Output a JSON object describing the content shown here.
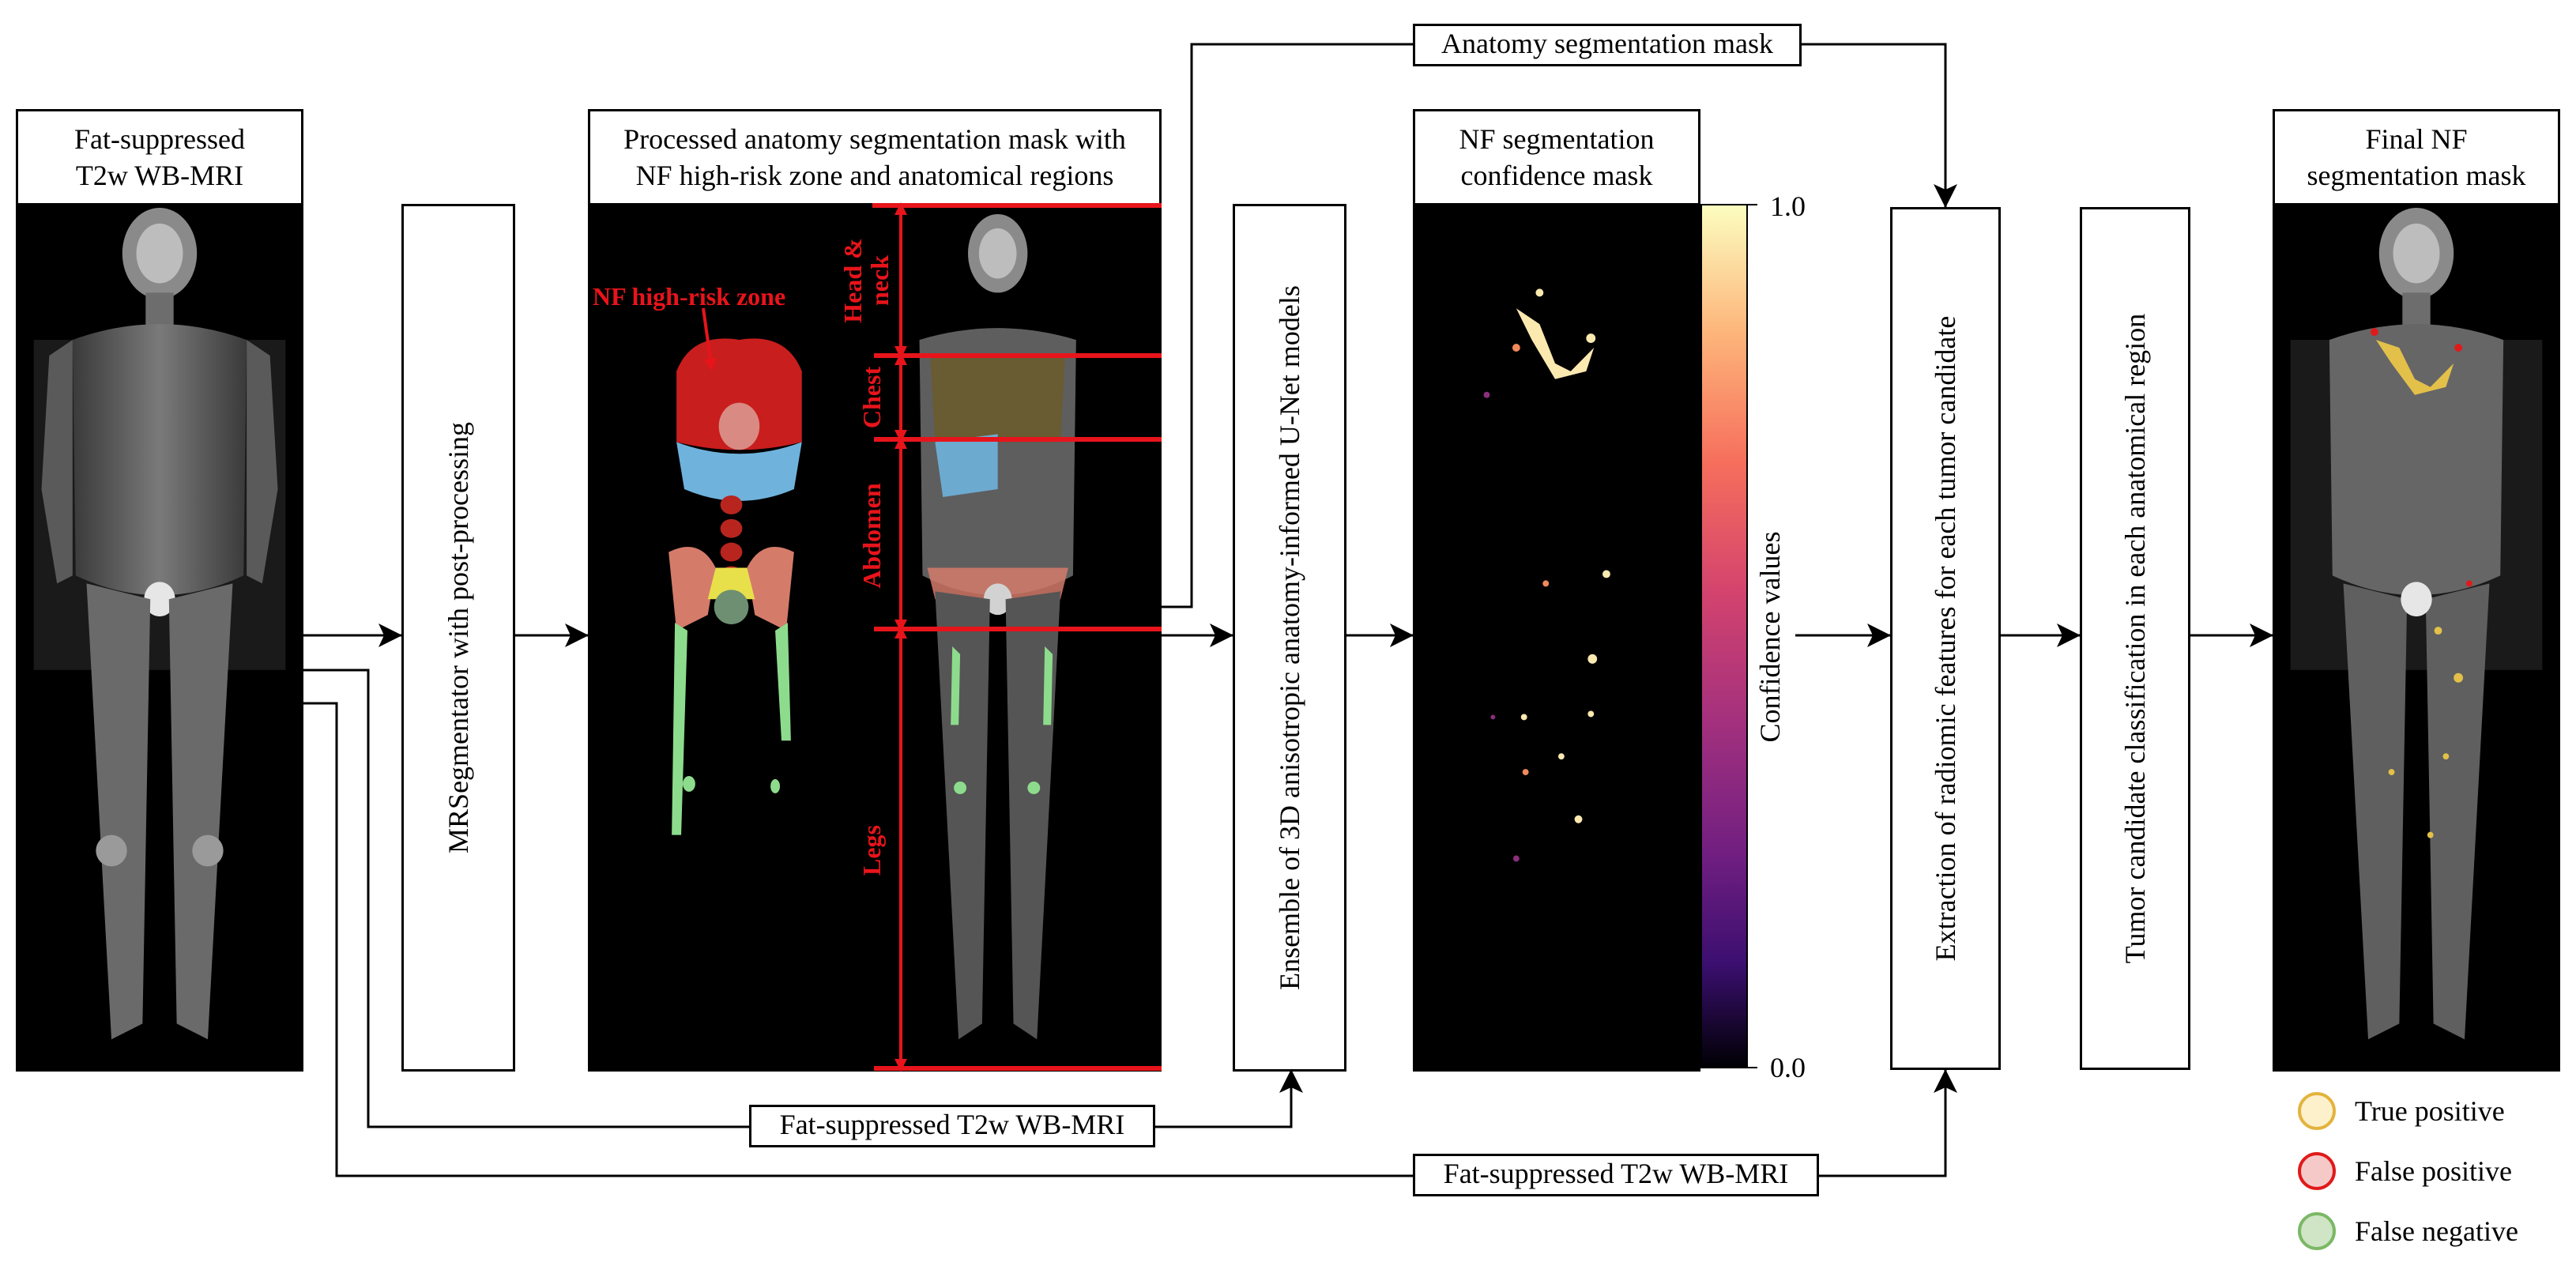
{
  "panels": {
    "input_title": "Fat-suppressed\nT2w WB-MRI",
    "processed_title": "Processed anatomy segmentation mask with\nNF high-risk zone and anatomical regions",
    "confidence_title": "NF segmentation\nconfidence mask",
    "final_title": "Final NF\nsegmentation mask"
  },
  "steps": {
    "mrsegmentator": "MRSegmentator with post-processing",
    "ensemble": "Ensemble of 3D anisotropic anatomy-informed U-Net models",
    "radiomic": "Extraction of radiomic features for each tumor candidate",
    "classification": "Tumor candidate classification in each anatomical region"
  },
  "connectors": {
    "anatomy_mask": "Anatomy segmentation mask",
    "mri_input_1": "Fat-suppressed T2w WB-MRI",
    "mri_input_2": "Fat-suppressed T2w WB-MRI"
  },
  "annotations": {
    "high_risk_zone": "NF high-risk zone",
    "regions": [
      "Head &\nneck",
      "Chest",
      "Abdomen",
      "Legs"
    ]
  },
  "colorbar": {
    "title": "Confidence values",
    "max_label": "1.0",
    "min_label": "0.0"
  },
  "legend": [
    {
      "label": "True positive",
      "fill": "#fdf1cc",
      "stroke": "#e3b33e"
    },
    {
      "label": "False positive",
      "fill": "#f6c9c9",
      "stroke": "#e01a1a"
    },
    {
      "label": "False negative",
      "fill": "#cfe5c6",
      "stroke": "#7bb865"
    }
  ],
  "colors": {
    "annotation_red": "#e8141b"
  }
}
